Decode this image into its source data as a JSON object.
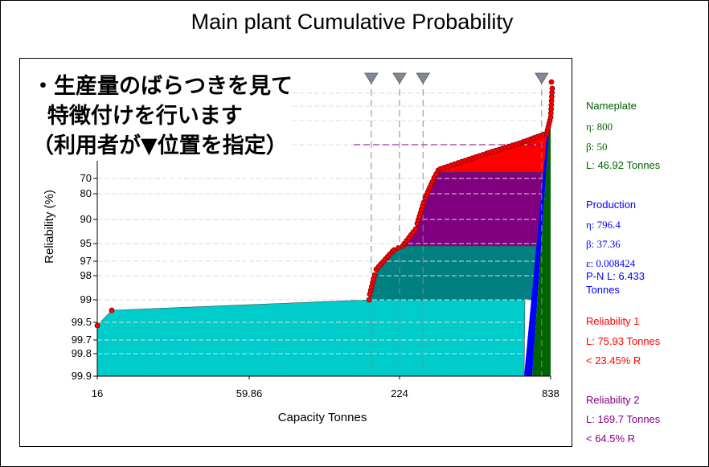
{
  "chart_data": {
    "type": "area",
    "title": "Main plant Cumulative Probability",
    "xlabel": "Capacity Tonnes",
    "ylabel": "Reliability (%)",
    "xscale": "log",
    "xlim": [
      16,
      838
    ],
    "x_ticks": [
      "16",
      "59.86",
      "224",
      "838"
    ],
    "y_ticks": [
      "70",
      "80",
      "90",
      "95",
      "97",
      "98",
      "99",
      "99.5",
      "99.7",
      "99.8",
      "99.9"
    ],
    "grid": true,
    "annotation": "・生産量のばらつきを見て\n  特徴付けを行います\n（利用者が▼位置を指定）",
    "markers_x": [
      175,
      224,
      275,
      775
    ],
    "regions": [
      {
        "name": "Reliability 1",
        "color": "#ff0000"
      },
      {
        "name": "Reliability 2",
        "color": "#800080"
      },
      {
        "color": "#008080"
      },
      {
        "color": "#00cccc"
      }
    ],
    "series": [
      {
        "name": "Nameplate",
        "color": "#006400"
      },
      {
        "name": "Production",
        "color": "#0000ff"
      },
      {
        "color": "#ff0000",
        "style": "points"
      }
    ]
  },
  "legend": {
    "nameplate": {
      "title": "Nameplate",
      "eta": "η: 800",
      "beta": "β: 50",
      "l": "L: 46.92 Tonnes",
      "color": "#006400"
    },
    "production": {
      "title": "Production",
      "eta": "η: 796.4",
      "beta": "β: 37.36",
      "eps": "ε: 0.008424",
      "pnl1": "P-N L: 6.433",
      "pnl2": "Tonnes",
      "color": "#0000ff"
    },
    "rel1": {
      "title": "Reliability 1",
      "l": "L: 75.93 Tonnes",
      "r": "< 23.45% R",
      "color": "#ff0000"
    },
    "rel2": {
      "title": "Reliability 2",
      "l": "L: 169.7 Tonnes",
      "r": "< 64.5% R",
      "color": "#800080"
    }
  }
}
